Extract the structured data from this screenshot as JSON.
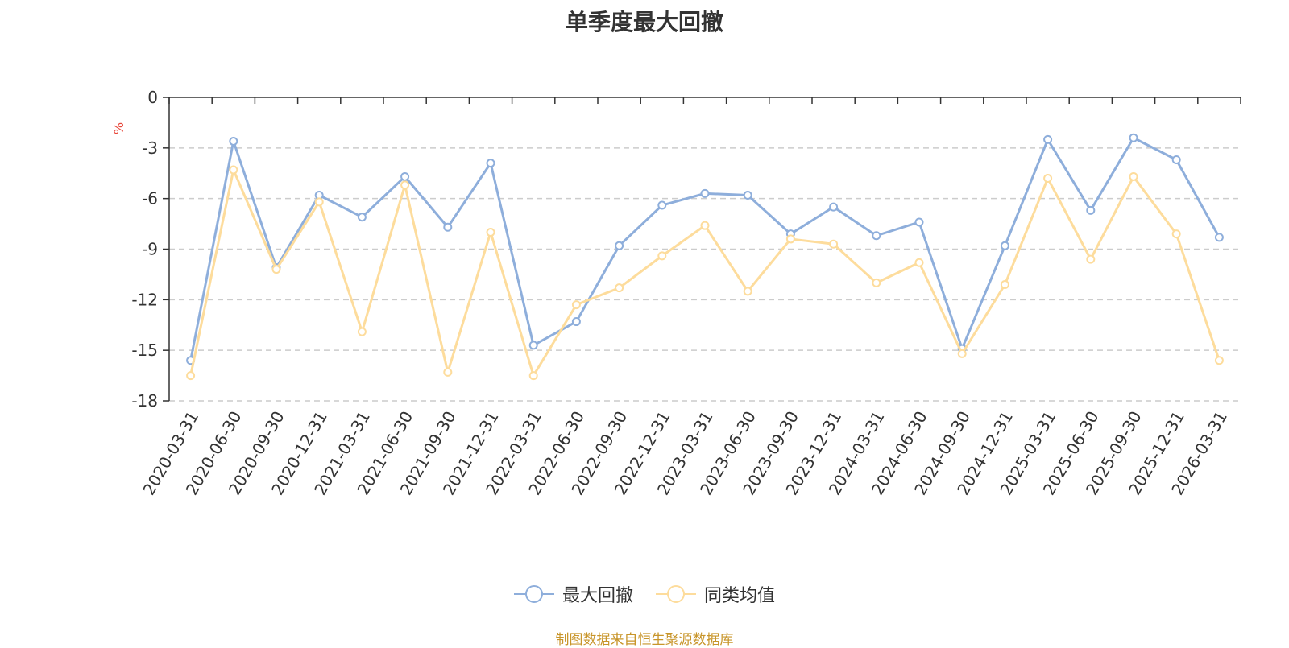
{
  "title": "单季度最大回撤",
  "unit_label": "%",
  "source": "制图数据来自恒生聚源数据库",
  "chart_data": {
    "type": "line",
    "title": "单季度最大回撤",
    "ylabel": "%",
    "ylim": [
      -18,
      0
    ],
    "yticks": [
      0,
      -3,
      -6,
      -9,
      -12,
      -15,
      -18
    ],
    "grid": true,
    "legend_position": "bottom-center",
    "categories": [
      "2020-03-31",
      "2020-06-30",
      "2020-09-30",
      "2020-12-31",
      "2021-03-31",
      "2021-06-30",
      "2021-09-30",
      "2021-12-31",
      "2022-03-31",
      "2022-06-30",
      "2022-09-30",
      "2022-12-31",
      "2023-03-31",
      "2023-06-30",
      "2023-09-30",
      "2023-12-31",
      "2024-03-31",
      "2024-06-30",
      "2024-09-30",
      "2024-12-31",
      "2025-03-31",
      "2025-06-30",
      "2025-09-30",
      "2025-12-31",
      "2026-03-31"
    ],
    "series": [
      {
        "name": "最大回撤",
        "color": "#8eaedb",
        "values": [
          -15.6,
          -2.6,
          -10.1,
          -5.8,
          -7.1,
          -4.7,
          -7.7,
          -3.9,
          -14.7,
          -13.3,
          -8.8,
          -6.4,
          -5.7,
          -5.8,
          -8.1,
          -6.5,
          -8.2,
          -7.4,
          -14.9,
          -8.8,
          -2.5,
          -6.7,
          -2.4,
          -3.7,
          -8.3
        ]
      },
      {
        "name": "同类均值",
        "color": "#fddc9c",
        "values": [
          -16.5,
          -4.3,
          -10.2,
          -6.2,
          -13.9,
          -5.2,
          -16.3,
          -8.0,
          -16.5,
          -12.3,
          -11.3,
          -9.4,
          -7.6,
          -11.5,
          -8.4,
          -8.7,
          -11.0,
          -9.8,
          -15.2,
          -11.1,
          -4.8,
          -9.6,
          -4.7,
          -8.1,
          -15.6
        ]
      }
    ]
  }
}
